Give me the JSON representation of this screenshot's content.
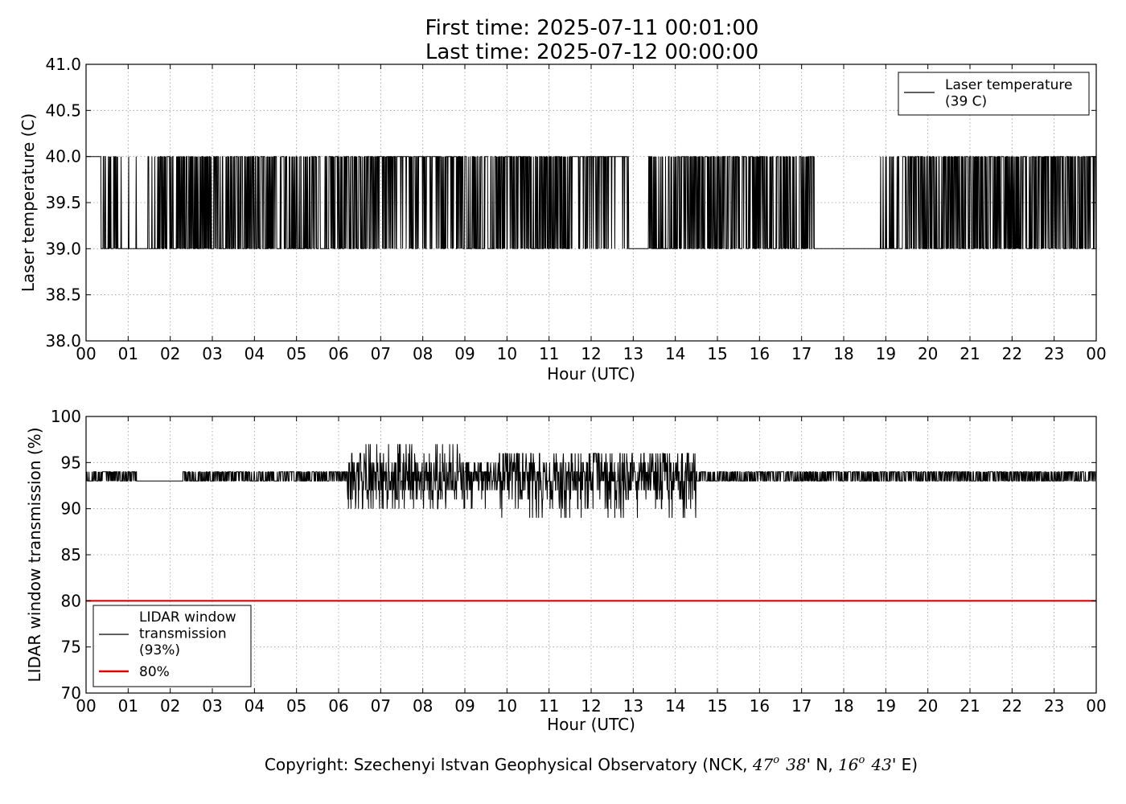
{
  "title_lines": [
    "First time: 2025-07-11 00:01:00",
    "Last time: 2025-07-12 00:00:00"
  ],
  "copyright_prefix": "Copyright: Szechenyi Istvan Geophysical Observatory (NCK, ",
  "coord_lat_deg": "47",
  "coord_deg_sup": "o",
  "coord_lat_min": "38",
  "coord_lat_suffix": "' N, ",
  "coord_lon_deg": "16",
  "coord_lon_min": "43",
  "coord_lon_suffix": "' E)",
  "colors": {
    "series": "#000000",
    "threshold": "#dd0000",
    "grid": "#999999"
  },
  "chart_data": [
    {
      "type": "line",
      "ylabel": "Laser temperature (C)",
      "xlabel": "Hour (UTC)",
      "xlim": [
        0,
        24
      ],
      "ylim": [
        38.0,
        41.0
      ],
      "x_ticks": [
        0,
        1,
        2,
        3,
        4,
        5,
        6,
        7,
        8,
        9,
        10,
        11,
        12,
        13,
        14,
        15,
        16,
        17,
        18,
        19,
        20,
        21,
        22,
        23,
        24
      ],
      "x_tick_labels": [
        "00",
        "01",
        "02",
        "03",
        "04",
        "05",
        "06",
        "07",
        "08",
        "09",
        "10",
        "11",
        "12",
        "13",
        "14",
        "15",
        "16",
        "17",
        "18",
        "19",
        "20",
        "21",
        "22",
        "23",
        "00"
      ],
      "y_ticks": [
        38.0,
        38.5,
        39.0,
        39.5,
        40.0,
        40.5,
        41.0
      ],
      "y_tick_labels": [
        "38.0",
        "38.5",
        "39.0",
        "39.5",
        "40.0",
        "40.5",
        "41.0"
      ],
      "grid": true,
      "legend_position": "top-right",
      "series": [
        {
          "name": "Laser temperature\n(39 C)",
          "color": "#000000",
          "segments": [
            {
              "x_start": 0.0,
              "x_end": 0.35,
              "value": 40,
              "pattern": "constant"
            },
            {
              "x_start": 0.35,
              "x_end": 0.8,
              "value_low": 39,
              "value_high": 40,
              "pattern": "sparse"
            },
            {
              "x_start": 0.8,
              "x_end": 1.7,
              "value_low": 39,
              "value_high": 40,
              "pattern": "rare-high"
            },
            {
              "x_start": 1.7,
              "x_end": 4.7,
              "value_low": 39,
              "value_high": 40,
              "pattern": "dense"
            },
            {
              "x_start": 4.7,
              "x_end": 5.1,
              "value_low": 39,
              "value_high": 40,
              "pattern": "sparse"
            },
            {
              "x_start": 5.1,
              "x_end": 6.9,
              "value_low": 39,
              "value_high": 40,
              "pattern": "dense"
            },
            {
              "x_start": 6.9,
              "x_end": 8.8,
              "value_low": 39,
              "value_high": 40,
              "pattern": "mostly-high"
            },
            {
              "x_start": 8.8,
              "x_end": 11.5,
              "value_low": 39,
              "value_high": 40,
              "pattern": "dense"
            },
            {
              "x_start": 11.5,
              "x_end": 12.9,
              "value_low": 39,
              "value_high": 40,
              "pattern": "mostly-high"
            },
            {
              "x_start": 12.9,
              "x_end": 13.3,
              "value": 39,
              "pattern": "constant"
            },
            {
              "x_start": 13.3,
              "x_end": 14.0,
              "value_low": 39,
              "value_high": 40,
              "pattern": "sparse"
            },
            {
              "x_start": 14.0,
              "x_end": 17.3,
              "value_low": 39,
              "value_high": 40,
              "pattern": "dense"
            },
            {
              "x_start": 17.3,
              "x_end": 18.75,
              "value": 39,
              "pattern": "constant"
            },
            {
              "x_start": 18.75,
              "x_end": 19.3,
              "value_low": 39,
              "value_high": 40,
              "pattern": "sparse"
            },
            {
              "x_start": 19.3,
              "x_end": 24.0,
              "value_low": 39,
              "value_high": 40,
              "pattern": "dense"
            }
          ]
        }
      ]
    },
    {
      "type": "line",
      "ylabel": "LIDAR window transmission (%)",
      "xlabel": "Hour (UTC)",
      "xlim": [
        0,
        24
      ],
      "ylim": [
        70,
        100
      ],
      "x_ticks": [
        0,
        1,
        2,
        3,
        4,
        5,
        6,
        7,
        8,
        9,
        10,
        11,
        12,
        13,
        14,
        15,
        16,
        17,
        18,
        19,
        20,
        21,
        22,
        23,
        24
      ],
      "x_tick_labels": [
        "00",
        "01",
        "02",
        "03",
        "04",
        "05",
        "06",
        "07",
        "08",
        "09",
        "10",
        "11",
        "12",
        "13",
        "14",
        "15",
        "16",
        "17",
        "18",
        "19",
        "20",
        "21",
        "22",
        "23",
        "00"
      ],
      "y_ticks": [
        70,
        75,
        80,
        85,
        90,
        95,
        100
      ],
      "y_tick_labels": [
        "70",
        "75",
        "80",
        "85",
        "90",
        "95",
        "100"
      ],
      "grid": true,
      "legend_position": "bottom-left",
      "series": [
        {
          "name": "LIDAR window\ntransmission\n(93%)",
          "color": "#000000",
          "segments": [
            {
              "x_start": 0.0,
              "x_end": 1.2,
              "value_low": 93,
              "value_high": 94,
              "pattern": "sparse"
            },
            {
              "x_start": 1.2,
              "x_end": 2.3,
              "value": 93,
              "pattern": "constant"
            },
            {
              "x_start": 2.3,
              "x_end": 6.2,
              "value_low": 92,
              "value_high": 95,
              "pattern": "calm"
            },
            {
              "x_start": 6.2,
              "x_end": 9.0,
              "value_low": 90,
              "value_high": 97,
              "pattern": "noisy"
            },
            {
              "x_start": 9.0,
              "x_end": 9.8,
              "value_low": 90,
              "value_high": 95,
              "pattern": "noisy"
            },
            {
              "x_start": 9.8,
              "x_end": 14.5,
              "value_low": 89,
              "value_high": 96,
              "pattern": "noisy"
            },
            {
              "x_start": 14.5,
              "x_end": 18.2,
              "value_low": 92,
              "value_high": 95,
              "pattern": "calm"
            },
            {
              "x_start": 18.2,
              "x_end": 24.0,
              "value_low": 93,
              "value_high": 94,
              "pattern": "calm"
            }
          ]
        },
        {
          "name": "80%",
          "color": "#dd0000",
          "x": [
            0,
            24
          ],
          "values": [
            80,
            80
          ]
        }
      ]
    }
  ]
}
